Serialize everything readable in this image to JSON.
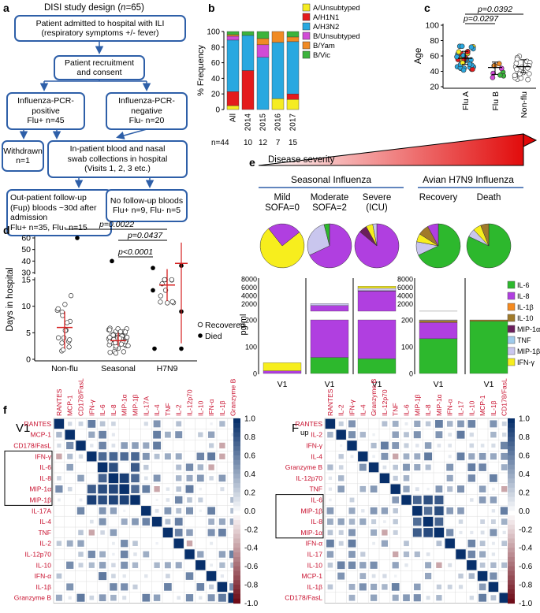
{
  "panel_a": {
    "letter": "a",
    "title_prefix": "DISI study design (",
    "title_n": "n",
    "title_suffix": "=65)",
    "boxes": {
      "admit": "Patient admitted to hospital with ILI\n(respiratory symptoms +/- fever)",
      "recruit": "Patient recruitment\nand consent",
      "positive": "Influenza-PCR-\npositive\nFlu+ n=45",
      "negative": "Influenza-PCR-\nnegative\nFlu- n=20",
      "withdrawn": "Withdrawn\nn=1",
      "inpatient": "In-patient blood and nasal\nswab collections in hospital\n(Visits 1, 2, 3 etc.)",
      "outpatient": "Out-patient follow-up\n(Fup) bloods ~30d after\nadmission\nFlu+ n=35, Flu- n=15",
      "nofollow": "No follow-up bloods\nFlu+ n=9, Flu- n=5"
    }
  },
  "panel_b": {
    "letter": "b",
    "n_prefix": "n=44",
    "n_values": [
      "10",
      "12",
      "7",
      "15"
    ],
    "legend": [
      "A/Unsubtyped",
      "A/H1N1",
      "A/H3N2",
      "B/Unsubtyped",
      "B/Yam",
      "B/Vic"
    ],
    "chart_data": {
      "type": "bar",
      "stacked": true,
      "ylabel": "% Frequency",
      "ylim": [
        0,
        100
      ],
      "yticks": [
        "0",
        "20",
        "40",
        "60",
        "80",
        "100"
      ],
      "categories": [
        "All",
        "2014",
        "2015",
        "2016",
        "2017"
      ],
      "series": [
        {
          "name": "A/Unsubtyped",
          "color": "#f5ec22",
          "values": [
            5,
            0,
            0,
            14,
            13
          ]
        },
        {
          "name": "A/H1N1",
          "color": "#e41a1c",
          "values": [
            18,
            50,
            0,
            0,
            7
          ]
        },
        {
          "name": "A/H3N2",
          "color": "#29a8e0",
          "values": [
            66,
            45,
            67,
            72,
            67
          ]
        },
        {
          "name": "B/Unsubtyped",
          "color": "#d14bd6",
          "values": [
            5,
            0,
            16,
            0,
            0
          ]
        },
        {
          "name": "B/Yam",
          "color": "#f08a24",
          "values": [
            2,
            0,
            8,
            14,
            6
          ]
        },
        {
          "name": "B/Vic",
          "color": "#3cb33c",
          "values": [
            4,
            5,
            9,
            0,
            7
          ]
        }
      ]
    }
  },
  "panel_c": {
    "letter": "c",
    "p1": "p=0.0392",
    "p2": "p=0.0297",
    "chart_data": {
      "type": "scatter",
      "ylabel": "Age",
      "ylim": [
        20,
        100
      ],
      "yticks": [
        "20",
        "40",
        "60",
        "80",
        "100"
      ],
      "categories": [
        "Flu A",
        "Flu B",
        "Non-flu"
      ],
      "summary": [
        {
          "name": "Flu A",
          "mean": 57,
          "sd_low": 49,
          "sd_high": 66
        },
        {
          "name": "Flu B",
          "mean": 45,
          "sd_low": 36,
          "sd_high": 52
        },
        {
          "name": "Non-flu",
          "mean": 46,
          "sd_low": 38,
          "sd_high": 55
        }
      ]
    }
  },
  "panel_d": {
    "letter": "d",
    "p_top": "p=0.0022",
    "p_mid": "p=0.0437",
    "p_low": "p<0.0001",
    "legend_recovered": "Recovered",
    "legend_died": "Died",
    "chart_data": {
      "type": "scatter",
      "ylabel": "Days in hospital",
      "yticks_low": [
        "0",
        "5",
        "10",
        "15"
      ],
      "yticks_high": [
        "30",
        "40",
        "50",
        "60"
      ],
      "categories": [
        "Non-flu",
        "Seasonal",
        "H7N9"
      ],
      "summary": [
        {
          "name": "Non-flu",
          "mean": 6,
          "sd_low": 2,
          "sd_high": 9
        },
        {
          "name": "Seasonal",
          "mean": 3.5,
          "sd_low": 2.5,
          "sd_high": 5
        },
        {
          "name": "H7N9",
          "mean": 14,
          "sd_low": 11,
          "sd_high": 17
        }
      ]
    }
  },
  "panel_e": {
    "letter": "e",
    "severity": "Disease severity",
    "seasonal": "Seasonal Influenza",
    "avian": "Avian H7N9 Influenza",
    "groups": [
      "Mild\nSOFA=0",
      "Moderate\nSOFA=2",
      "Severe\n(ICU)",
      "Recovery",
      "Death"
    ],
    "xlabel": "V1",
    "ylabel": "pg/ml",
    "yticks_high": [
      "2000",
      "4000",
      "6000",
      "8000"
    ],
    "yticks_low": [
      "0",
      "100",
      "200"
    ],
    "legend": [
      "IL-6",
      "IL-8",
      "IL-1β",
      "IL-10",
      "MIP-1α",
      "TNF",
      "MIP-1β",
      "IFN-γ"
    ],
    "colors": [
      "#2db82d",
      "#b03fe0",
      "#f58a1f",
      "#a07a2a",
      "#6b1f5c",
      "#9ecbec",
      "#c9c6ee",
      "#f7ee1d"
    ],
    "chart_data": {
      "type": "bar",
      "stacked": true,
      "categories": [
        "Mild",
        "Moderate",
        "Severe",
        "Recovery",
        "Death"
      ],
      "series": [
        {
          "name": "IL-6",
          "values": [
            0,
            60,
            55,
            130,
            195
          ]
        },
        {
          "name": "IL-8",
          "values": [
            10,
            1500,
            5000,
            60,
            0
          ]
        },
        {
          "name": "IL-1β",
          "values": [
            0,
            0,
            0,
            0,
            0
          ]
        },
        {
          "name": "IL-10",
          "values": [
            0,
            0,
            0,
            8,
            5
          ]
        },
        {
          "name": "MIP-1α",
          "values": [
            0,
            0,
            100,
            0,
            0
          ]
        },
        {
          "name": "TNF",
          "values": [
            0,
            0,
            0,
            0,
            0
          ]
        },
        {
          "name": "MIP-1β",
          "values": [
            0,
            500,
            600,
            6,
            0
          ]
        },
        {
          "name": "IFN-γ",
          "values": [
            30,
            0,
            500,
            0,
            0
          ]
        }
      ],
      "pies": [
        [
          {
            "n": "IFN-γ",
            "v": 75
          },
          {
            "n": "IL-8",
            "v": 25
          }
        ],
        [
          {
            "n": "IL-8",
            "v": 68
          },
          {
            "n": "MIP-1β",
            "v": 28
          },
          {
            "n": "IL-6",
            "v": 4
          }
        ],
        [
          {
            "n": "IL-8",
            "v": 86
          },
          {
            "n": "MIP-1α",
            "v": 6
          },
          {
            "n": "IFN-γ",
            "v": 5
          },
          {
            "n": "MIP-1β",
            "v": 3
          }
        ],
        [
          {
            "n": "IL-6",
            "v": 68
          },
          {
            "n": "MIP-1β",
            "v": 10
          },
          {
            "n": "IFN-γ",
            "v": 6
          },
          {
            "n": "IL-10",
            "v": 8
          },
          {
            "n": "IL-8",
            "v": 8
          }
        ],
        [
          {
            "n": "IL-6",
            "v": 82
          },
          {
            "n": "MIP-1β",
            "v": 6
          },
          {
            "n": "IFN-γ",
            "v": 6
          },
          {
            "n": "IL-10",
            "v": 6
          }
        ]
      ]
    }
  },
  "panel_f": {
    "letter": "f",
    "left_title": "V1",
    "right_title": "F",
    "right_title_sub": "up",
    "colorbar_ticks": [
      "1.0",
      "0.8",
      "0.6",
      "0.4",
      "0.2",
      "0.0",
      "-0.2",
      "-0.4",
      "-0.6",
      "-0.8",
      "-1.0"
    ],
    "left_labels": [
      "RANTES",
      "MCP-1",
      "CD178/FasL",
      "IFN-γ",
      "IL-6",
      "IL-8",
      "MIP-1α",
      "MIP-1β",
      "IL-17A",
      "IL-4",
      "TNF",
      "IL-2",
      "IL-12p70",
      "IL-10",
      "IFN-α",
      "IL-1β",
      "Granzyme B"
    ],
    "right_labels": [
      "RANTES",
      "IL-2",
      "IFN-γ",
      "IL-4",
      "Granzyme B",
      "IL-12p70",
      "TNF",
      "IL-6",
      "MIP-1β",
      "IL-8",
      "MIP-1α",
      "IFN-α",
      "IL-17",
      "IL-10",
      "MCP-1",
      "IL-1β",
      "CD178/FasL"
    ],
    "chart_data": {
      "type": "heatmap",
      "value_range": [
        -1,
        1
      ],
      "left_boxed_rows": [
        "IFN-γ",
        "IL-6",
        "IL-8",
        "MIP-1α",
        "MIP-1β"
      ],
      "right_boxed_rows": [
        "IL-6",
        "MIP-1β",
        "IL-8",
        "MIP-1α"
      ]
    }
  }
}
